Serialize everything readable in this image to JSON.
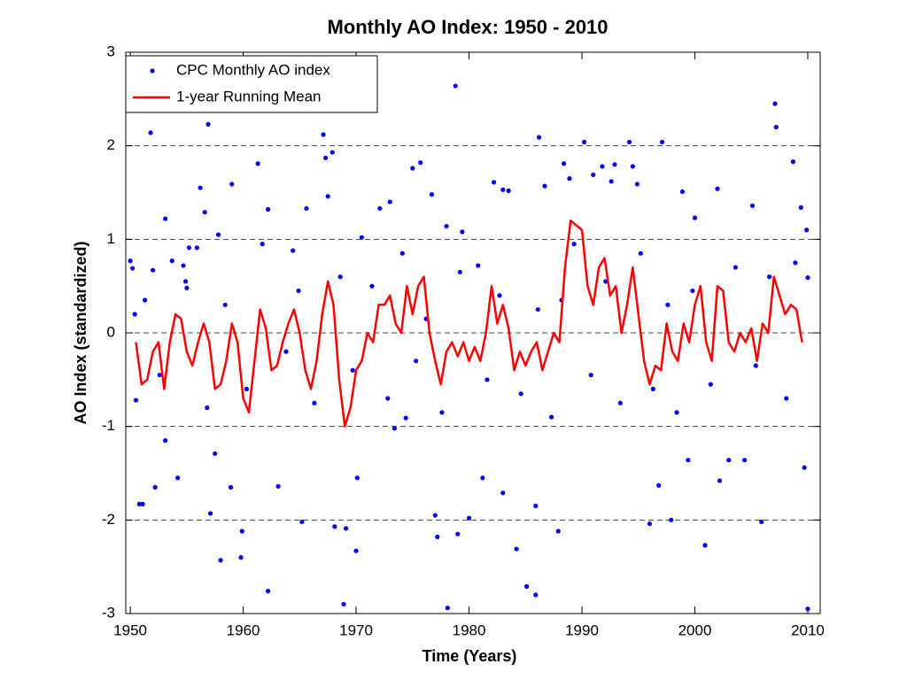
{
  "chart_data": {
    "type": "scatter",
    "title": "Monthly AO Index: 1950 - 2010",
    "x_label": "Time (Years)",
    "y_label": "AO Index (standardized)",
    "xlim": [
      1949.6,
      2011.1
    ],
    "ylim": [
      -3,
      3
    ],
    "xticks": [
      1950,
      1960,
      1970,
      1980,
      1990,
      2000,
      2010
    ],
    "yticks": [
      -3,
      -2,
      -1,
      0,
      1,
      2,
      3
    ],
    "grid": true,
    "legend": "upper left",
    "series": [
      {
        "name": "CPC Monthly AO index",
        "type": "scatter",
        "color": "#0000ff",
        "x": [
          1950.0,
          1950.2,
          1950.4,
          1950.5,
          1950.8,
          1951.1,
          1951.8,
          1952.2,
          1952.0,
          1953.1,
          1953.1,
          1953.7,
          1954.2,
          1954.7,
          1955.0,
          1955.2,
          1955.9,
          1956.2,
          1956.6,
          1956.9,
          1957.1,
          1957.5,
          1957.8,
          1958.0,
          1959.0,
          1958.9,
          1959.9,
          1959.8,
          1961.3,
          1962.2,
          1962.2,
          1963.1,
          1964.4,
          1965.6,
          1965.2,
          1967.1,
          1967.3,
          1967.5,
          1967.9,
          1968.1,
          1968.9,
          1969.1,
          1970.0,
          1970.1,
          1970.5,
          1972.1,
          1973.0,
          1973.4,
          1974.4,
          1975.0,
          1975.7,
          1976.7,
          1977.0,
          1977.2,
          1978.0,
          1978.1,
          1978.8,
          1979.0,
          1980.0,
          1979.4,
          1980.8,
          1981.2,
          1982.2,
          1983.0,
          1983.5,
          1983.0,
          1984.2,
          1985.1,
          1985.9,
          1985.9,
          1986.2,
          1986.7,
          1988.4,
          1988.9,
          1987.9,
          1990.2,
          1991.0,
          1991.8,
          1992.9,
          1992.6,
          1994.2,
          1994.5,
          1994.9,
          1996.0,
          1997.1,
          1996.8,
          1997.9,
          1998.9,
          1999.4,
          2000.0,
          2000.9,
          2002.0,
          2002.2,
          2003.0,
          2004.4,
          2005.1,
          2005.9,
          2007.1,
          2007.2,
          2008.7,
          2009.4,
          2009.7,
          2010.0,
          2009.9,
          2010.0,
          1951.3,
          1952.6,
          1954.9,
          1956.8,
          1958.4,
          1960.3,
          1961.7,
          1963.8,
          1964.9,
          1966.3,
          1968.6,
          1969.7,
          1971.4,
          1972.8,
          1974.1,
          1975.3,
          1976.2,
          1977.6,
          1979.2,
          1981.6,
          1982.7,
          1984.6,
          1986.1,
          1987.3,
          1988.2,
          1989.3,
          1990.8,
          1992.1,
          1993.4,
          1995.2,
          1996.3,
          1997.6,
          1998.4,
          1999.8,
          2001.4,
          2003.6,
          2005.4,
          2006.6,
          2008.1,
          2008.9
        ],
        "values": [
          0.77,
          0.69,
          0.2,
          -0.72,
          -1.83,
          -1.83,
          2.14,
          -1.65,
          0.67,
          1.22,
          -1.15,
          0.77,
          -1.55,
          0.72,
          0.48,
          0.91,
          0.91,
          1.55,
          1.29,
          2.23,
          -1.93,
          -1.29,
          1.05,
          -2.43,
          1.59,
          -1.65,
          -2.12,
          -2.4,
          1.81,
          1.32,
          -2.76,
          -1.64,
          0.88,
          1.33,
          -2.02,
          2.12,
          1.87,
          1.46,
          1.93,
          -2.07,
          -2.9,
          -2.09,
          -2.33,
          -1.55,
          1.02,
          1.33,
          1.4,
          -1.02,
          -0.91,
          1.76,
          1.82,
          1.48,
          -1.95,
          -2.18,
          1.14,
          -2.94,
          2.64,
          -2.15,
          -1.98,
          1.08,
          0.72,
          -1.55,
          1.61,
          1.53,
          1.52,
          -1.71,
          -2.31,
          -2.71,
          -2.8,
          -1.85,
          2.09,
          1.57,
          1.81,
          1.65,
          -2.12,
          2.04,
          1.69,
          1.78,
          1.8,
          1.62,
          2.04,
          1.78,
          1.59,
          -2.04,
          2.04,
          -1.63,
          -2.0,
          1.51,
          -1.36,
          1.23,
          -2.27,
          1.54,
          -1.58,
          -1.36,
          -1.36,
          1.36,
          -2.02,
          2.45,
          2.2,
          1.83,
          1.34,
          -1.44,
          -2.95,
          1.1,
          0.59,
          0.35,
          -0.45,
          0.55,
          -0.8,
          0.3,
          -0.6,
          0.95,
          -0.2,
          0.45,
          -0.75,
          0.6,
          -0.4,
          0.5,
          -0.7,
          0.85,
          -0.3,
          0.15,
          -0.85,
          0.65,
          -0.5,
          0.4,
          -0.65,
          0.25,
          -0.9,
          0.35,
          0.95,
          -0.45,
          0.55,
          -0.75,
          0.85,
          -0.6,
          0.3,
          -0.85,
          0.45,
          -0.55,
          0.7,
          -0.35,
          0.6,
          -0.7,
          0.75
        ]
      },
      {
        "name": "1-year Running Mean",
        "type": "line",
        "color": "#ff0000",
        "x": [
          1950.5,
          1951,
          1951.5,
          1952,
          1952.5,
          1953,
          1953.5,
          1954,
          1954.5,
          1955,
          1955.5,
          1956,
          1956.5,
          1957,
          1957.5,
          1958,
          1958.5,
          1959,
          1959.5,
          1960,
          1960.5,
          1961,
          1961.5,
          1962,
          1962.5,
          1963,
          1963.5,
          1964,
          1964.5,
          1965,
          1965.5,
          1966,
          1966.5,
          1967,
          1967.5,
          1968,
          1968.5,
          1969,
          1969.5,
          1970,
          1970.5,
          1971,
          1971.5,
          1972,
          1972.5,
          1973,
          1973.5,
          1974,
          1974.5,
          1975,
          1975.5,
          1976,
          1976.5,
          1977,
          1977.5,
          1978,
          1978.5,
          1979,
          1979.5,
          1980,
          1980.5,
          1981,
          1981.5,
          1982,
          1982.5,
          1983,
          1983.5,
          1984,
          1984.5,
          1985,
          1985.5,
          1986,
          1986.5,
          1987,
          1987.5,
          1988,
          1988.5,
          1989,
          1989.5,
          1990,
          1990.5,
          1991,
          1991.5,
          1992,
          1992.5,
          1993,
          1993.5,
          1994,
          1994.5,
          1995,
          1995.5,
          1996,
          1996.5,
          1997,
          1997.5,
          1998,
          1998.5,
          1999,
          1999.5,
          2000,
          2000.5,
          2001,
          2001.5,
          2002,
          2002.5,
          2003,
          2003.5,
          2004,
          2004.5,
          2005,
          2005.5,
          2006,
          2006.5,
          2007,
          2007.5,
          2008,
          2008.5,
          2009,
          2009.5
        ],
        "values": [
          -0.1,
          -0.55,
          -0.5,
          -0.2,
          -0.1,
          -0.6,
          -0.1,
          0.2,
          0.15,
          -0.2,
          -0.35,
          -0.1,
          0.1,
          -0.1,
          -0.6,
          -0.55,
          -0.3,
          0.1,
          -0.1,
          -0.7,
          -0.85,
          -0.3,
          0.25,
          0.05,
          -0.4,
          -0.35,
          -0.1,
          0.1,
          0.25,
          0.0,
          -0.4,
          -0.6,
          -0.3,
          0.2,
          0.55,
          0.3,
          -0.5,
          -1.0,
          -0.8,
          -0.4,
          -0.3,
          0.0,
          -0.1,
          0.3,
          0.3,
          0.4,
          0.1,
          0.0,
          0.5,
          0.2,
          0.5,
          0.6,
          0.0,
          -0.3,
          -0.55,
          -0.2,
          -0.1,
          -0.25,
          -0.1,
          -0.3,
          -0.15,
          -0.3,
          0.0,
          0.5,
          0.1,
          0.3,
          0.05,
          -0.4,
          -0.2,
          -0.35,
          -0.2,
          -0.1,
          -0.4,
          -0.2,
          0.0,
          -0.1,
          0.7,
          1.2,
          1.15,
          1.1,
          0.5,
          0.3,
          0.7,
          0.8,
          0.4,
          0.5,
          0.0,
          0.3,
          0.7,
          0.2,
          -0.3,
          -0.55,
          -0.35,
          -0.4,
          0.1,
          -0.2,
          -0.3,
          0.1,
          -0.1,
          0.3,
          0.5,
          -0.1,
          -0.3,
          0.5,
          0.45,
          -0.1,
          -0.2,
          0.0,
          -0.1,
          0.05,
          -0.3,
          0.1,
          0.0,
          0.6,
          0.4,
          0.2,
          0.3,
          0.25,
          -0.1
        ]
      }
    ]
  }
}
